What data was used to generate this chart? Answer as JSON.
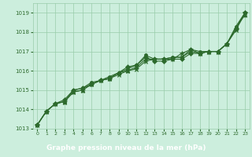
{
  "x": [
    0,
    1,
    2,
    3,
    4,
    5,
    6,
    7,
    8,
    9,
    10,
    11,
    12,
    13,
    14,
    15,
    16,
    17,
    18,
    19,
    20,
    21,
    22,
    23
  ],
  "series": [
    [
      1013.2,
      1013.9,
      1014.3,
      1014.4,
      1014.9,
      1015.0,
      1015.3,
      1015.5,
      1015.6,
      1015.8,
      1016.0,
      1016.1,
      1016.5,
      1016.6,
      1016.6,
      1016.6,
      1016.9,
      1017.1,
      1016.9,
      1017.0,
      1017.0,
      1017.4,
      1018.1,
      1019.0
    ],
    [
      1013.2,
      1013.9,
      1014.3,
      1014.5,
      1015.0,
      1015.1,
      1015.3,
      1015.5,
      1015.6,
      1015.9,
      1016.2,
      1016.3,
      1016.7,
      1016.5,
      1016.5,
      1016.6,
      1016.6,
      1016.9,
      1016.9,
      1017.0,
      1017.0,
      1017.4,
      1018.2,
      1019.0
    ],
    [
      1013.2,
      1013.9,
      1014.3,
      1014.4,
      1014.9,
      1015.0,
      1015.3,
      1015.5,
      1015.6,
      1015.9,
      1016.0,
      1016.2,
      1016.6,
      1016.6,
      1016.6,
      1016.7,
      1016.7,
      1017.0,
      1016.9,
      1017.0,
      1017.0,
      1017.4,
      1018.2,
      1018.9
    ],
    [
      1013.2,
      1013.9,
      1014.3,
      1014.4,
      1015.0,
      1015.1,
      1015.4,
      1015.5,
      1015.7,
      1015.9,
      1016.1,
      1016.3,
      1016.8,
      1016.6,
      1016.6,
      1016.7,
      1016.7,
      1017.1,
      1017.0,
      1017.0,
      1017.0,
      1017.4,
      1018.3,
      1019.0
    ]
  ],
  "line_color": "#2d6a2d",
  "marker_color": "#2d6a2d",
  "bg_color": "#cceedd",
  "grid_color": "#99ccaa",
  "text_color": "#2d6a2d",
  "bar_color": "#2d6a2d",
  "bar_text_color": "#ffffff",
  "xlabel": "Graphe pression niveau de la mer (hPa)",
  "ylim": [
    1013.0,
    1019.5
  ],
  "yticks": [
    1013,
    1014,
    1015,
    1016,
    1017,
    1018,
    1019
  ],
  "xticks": [
    0,
    1,
    2,
    3,
    4,
    5,
    6,
    7,
    8,
    9,
    10,
    11,
    12,
    13,
    14,
    15,
    16,
    17,
    18,
    19,
    20,
    21,
    22,
    23
  ]
}
